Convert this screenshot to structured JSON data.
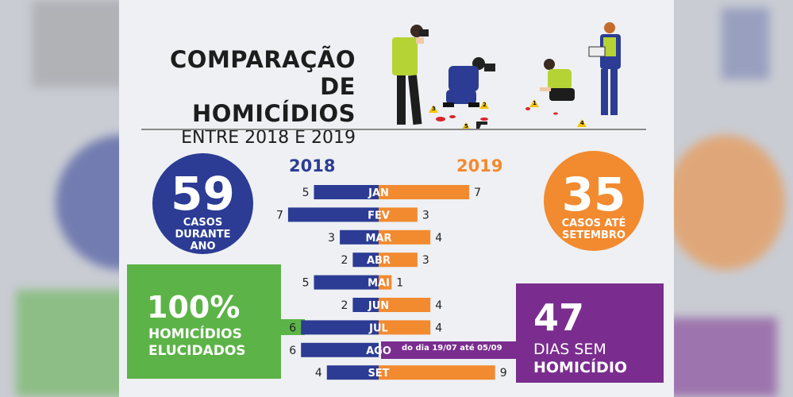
{
  "title": {
    "line1": "COMPARAÇÃO",
    "line2": "DE HOMICÍDIOS",
    "line3": "ENTRE 2018 E 2019"
  },
  "left_stat": {
    "number": "59",
    "line1": "CASOS",
    "line2": "DURANTE",
    "line3": "ANO"
  },
  "right_stat": {
    "number": "35",
    "line1": "CASOS ATÉ",
    "line2": "SETEMBRO"
  },
  "green_box": {
    "number": "100%",
    "line1": "HOMICÍDIOS",
    "line2": "ELUCIDADOS"
  },
  "purple_box": {
    "number": "47",
    "line1": "DIAS SEM",
    "line2": "HOMICÍDIO",
    "note": "do dia 19/07 até 05/09"
  },
  "illustration": {
    "marker_numbers": [
      "3",
      "2",
      "1",
      "5",
      "4"
    ],
    "icon": "crime-scene-investigators-icon"
  },
  "colors": {
    "y2018": "#2c3c94",
    "y2019": "#f28a30",
    "green": "#5cb347",
    "purple": "#7a2d8f"
  },
  "chart_data": {
    "type": "bar",
    "orientation": "diverging-horizontal",
    "categories": [
      "JAN",
      "FEV",
      "MAR",
      "ABR",
      "MAI",
      "JUN",
      "JUL",
      "AGO",
      "SET"
    ],
    "series": [
      {
        "name": "2018",
        "values": [
          5,
          7,
          3,
          2,
          5,
          2,
          6,
          6,
          4
        ]
      },
      {
        "name": "2019",
        "values": [
          7,
          3,
          4,
          3,
          1,
          4,
          4,
          0,
          9
        ]
      }
    ]
  }
}
